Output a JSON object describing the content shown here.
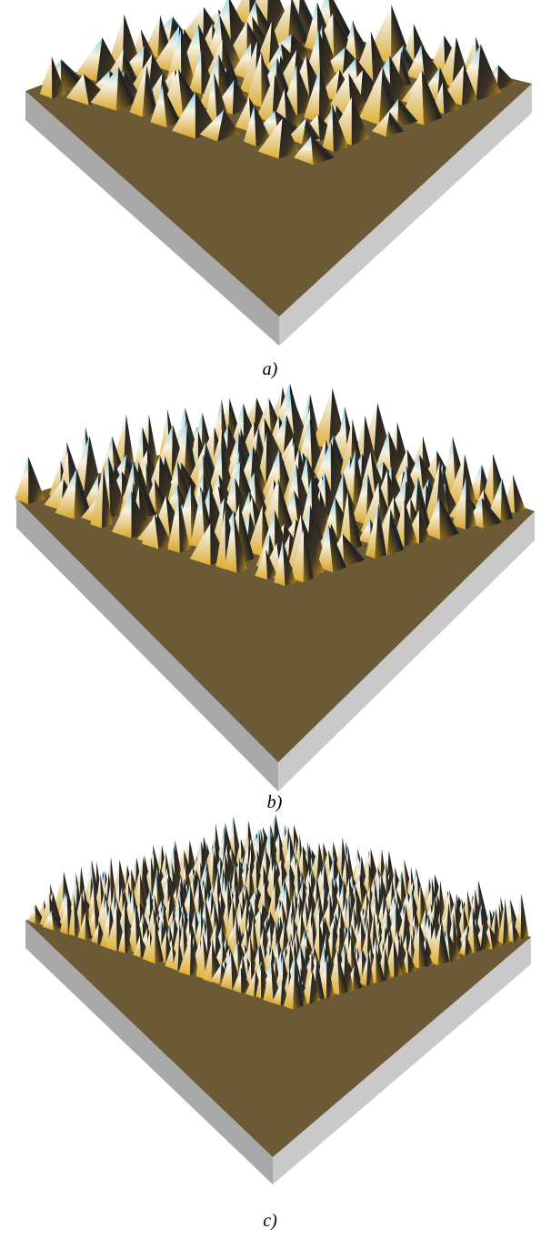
{
  "panels": [
    {
      "caption": "a)"
    },
    {
      "caption": "b)"
    },
    {
      "caption": "c)"
    }
  ]
}
